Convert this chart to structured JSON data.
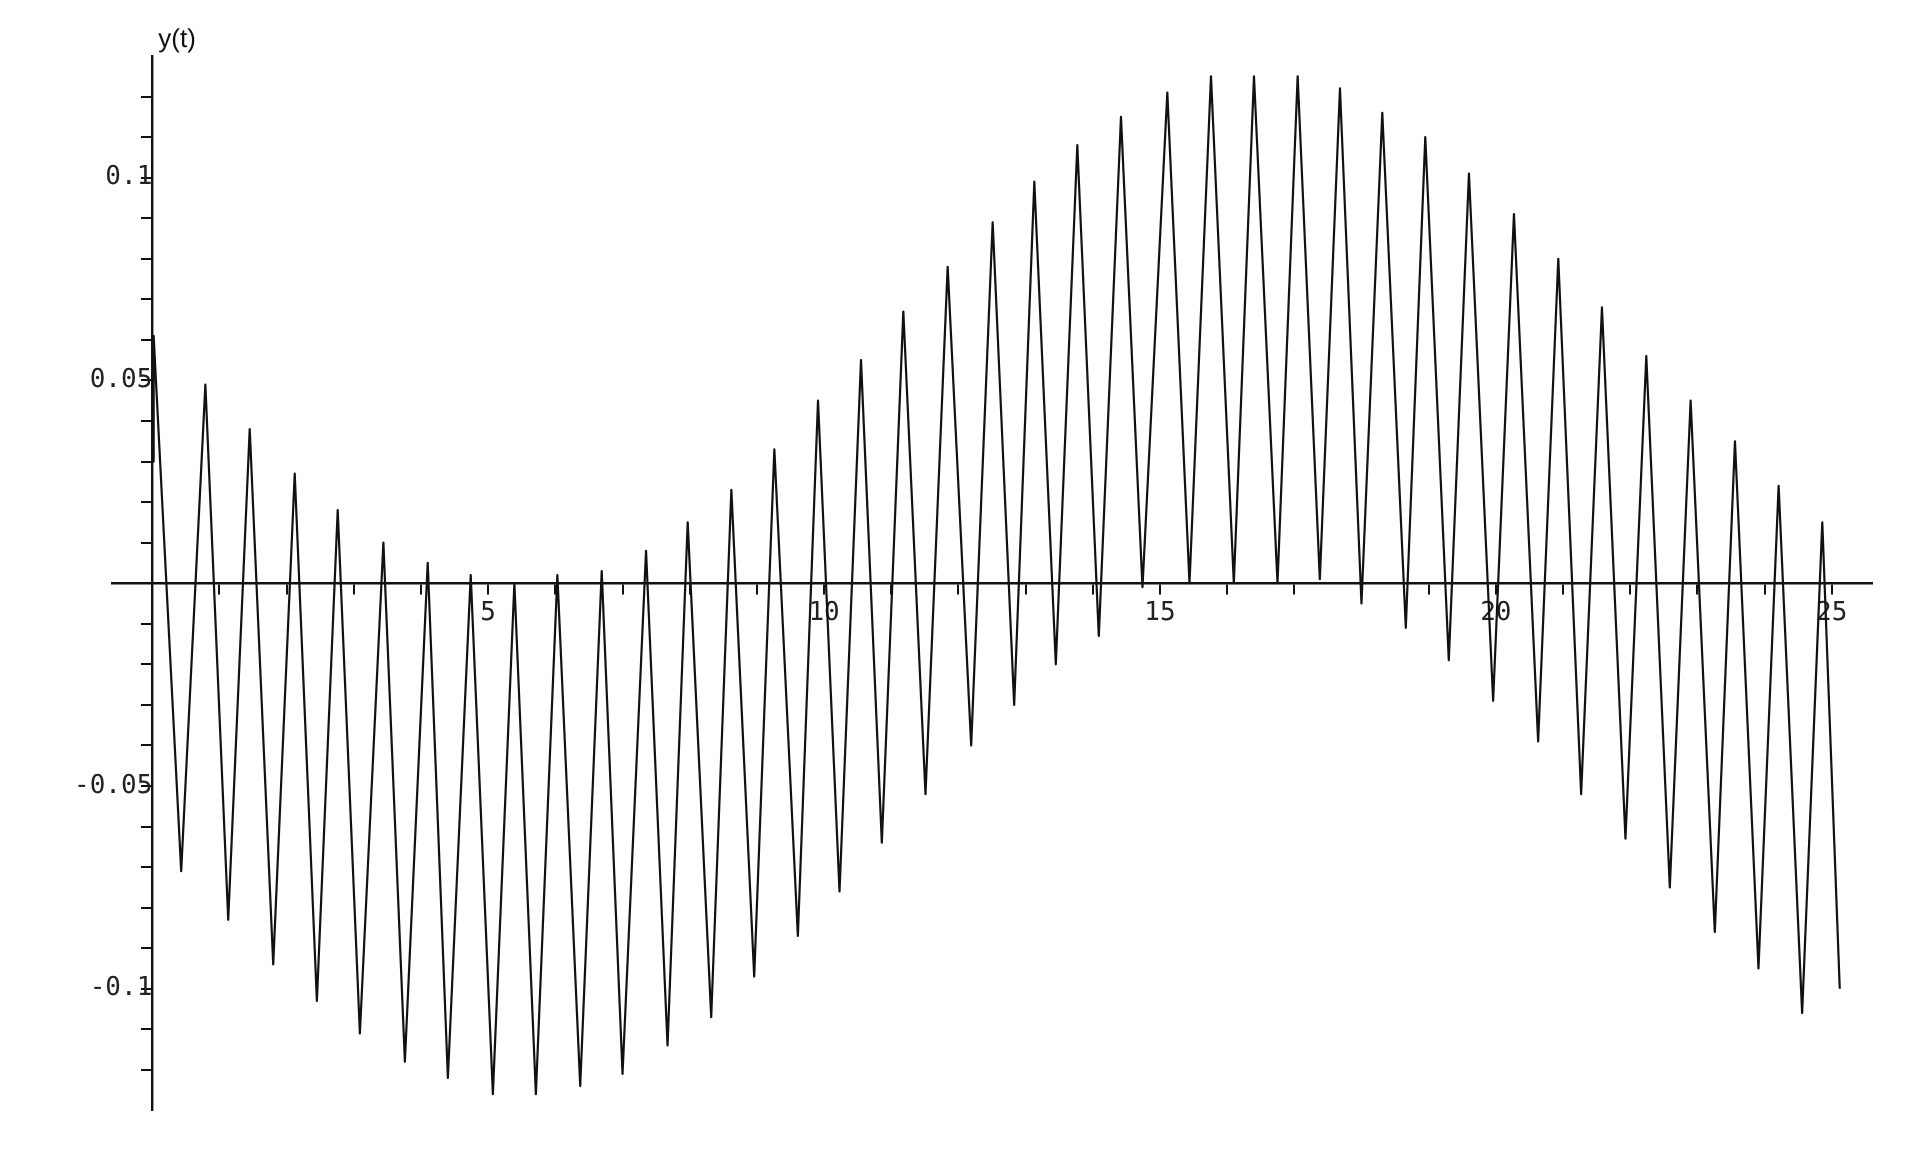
{
  "chart_data": {
    "type": "line",
    "ylabel": "y(t)",
    "marker": "none",
    "line_style": "solid",
    "x": [
      0,
      0.02,
      0.43,
      0.79,
      1.13,
      1.45,
      1.8,
      2.12,
      2.45,
      2.76,
      3.09,
      3.44,
      3.76,
      4.1,
      4.4,
      4.74,
      5.07,
      5.39,
      5.71,
      6.03,
      6.37,
      6.69,
      7,
      7.35,
      7.67,
      7.97,
      8.32,
      8.62,
      8.96,
      9.26,
      9.61,
      9.91,
      10.23,
      10.55,
      10.86,
      11.18,
      11.51,
      11.84,
      12.19,
      12.51,
      12.83,
      13.13,
      13.45,
      13.77,
      14.09,
      14.42,
      14.74,
      15.11,
      15.44,
      15.76,
      16.1,
      16.4,
      16.75,
      17.05,
      17.38,
      17.68,
      18,
      18.31,
      18.66,
      18.95,
      19.3,
      19.6,
      19.96,
      20.27,
      20.63,
      20.93,
      21.27,
      21.58,
      21.93,
      22.24,
      22.59,
      22.9,
      23.26,
      23.56,
      23.91,
      24.21,
      24.56,
      24.86,
      25.12
    ],
    "series": [
      {
        "color": "#111111",
        "values": [
          0.03,
          0.061,
          -0.071,
          0.049,
          -0.083,
          0.038,
          -0.094,
          0.027,
          -0.103,
          0.018,
          -0.111,
          0.01,
          -0.118,
          0.005,
          -0.122,
          0.002,
          -0.126,
          0,
          -0.126,
          0.002,
          -0.124,
          0.003,
          -0.121,
          0.008,
          -0.114,
          0.015,
          -0.107,
          0.023,
          -0.097,
          0.033,
          -0.087,
          0.045,
          -0.076,
          0.055,
          -0.064,
          0.067,
          -0.052,
          0.078,
          -0.04,
          0.089,
          -0.03,
          0.099,
          -0.02,
          0.108,
          -0.013,
          0.115,
          -0.001,
          0.121,
          0,
          0.125,
          0,
          0.125,
          0,
          0.125,
          0.001,
          0.122,
          -0.005,
          0.116,
          -0.011,
          0.11,
          -0.019,
          0.101,
          -0.029,
          0.091,
          -0.039,
          0.08,
          -0.052,
          0.068,
          -0.063,
          0.056,
          -0.075,
          0.045,
          -0.086,
          0.035,
          -0.095,
          0.024,
          -0.106,
          0.015,
          -0.1
        ]
      }
    ],
    "xlim": [
      -0.6,
      25.6
    ],
    "ylim": [
      -0.13,
      0.13
    ],
    "xticks": [
      {
        "value": 1,
        "label": null
      },
      {
        "value": 2,
        "label": null
      },
      {
        "value": 3,
        "label": null
      },
      {
        "value": 4,
        "label": null
      },
      5,
      {
        "value": 6,
        "label": null
      },
      {
        "value": 7,
        "label": null
      },
      {
        "value": 8,
        "label": null
      },
      {
        "value": 9,
        "label": null
      },
      10,
      {
        "value": 11,
        "label": null
      },
      {
        "value": 12,
        "label": null
      },
      {
        "value": 13,
        "label": null
      },
      {
        "value": 14,
        "label": null
      },
      15,
      {
        "value": 16,
        "label": null
      },
      {
        "value": 17,
        "label": null
      },
      {
        "value": 18,
        "label": null
      },
      {
        "value": 19,
        "label": null
      },
      20,
      {
        "value": 21,
        "label": null
      },
      {
        "value": 22,
        "label": null
      },
      {
        "value": 23,
        "label": null
      },
      {
        "value": 24,
        "label": null
      },
      25
    ],
    "yticks": [
      {
        "value": -0.12,
        "label": null
      },
      {
        "value": -0.11,
        "label": null
      },
      -0.1,
      {
        "value": -0.09,
        "label": null
      },
      {
        "value": -0.08,
        "label": null
      },
      {
        "value": -0.07,
        "label": null
      },
      {
        "value": -0.06,
        "label": null
      },
      -0.05,
      {
        "value": -0.04,
        "label": null
      },
      {
        "value": -0.03,
        "label": null
      },
      {
        "value": -0.02,
        "label": null
      },
      {
        "value": -0.01,
        "label": null
      },
      {
        "value": 0.01,
        "label": null
      },
      {
        "value": 0.02,
        "label": null
      },
      {
        "value": 0.03,
        "label": null
      },
      {
        "value": 0.04,
        "label": null
      },
      0.05,
      {
        "value": 0.06,
        "label": null
      },
      {
        "value": 0.07,
        "label": null
      },
      {
        "value": 0.08,
        "label": null
      },
      {
        "value": 0.09,
        "label": null
      },
      0.1,
      {
        "value": 0.11,
        "label": null
      },
      {
        "value": 0.12,
        "label": null
      }
    ]
  }
}
